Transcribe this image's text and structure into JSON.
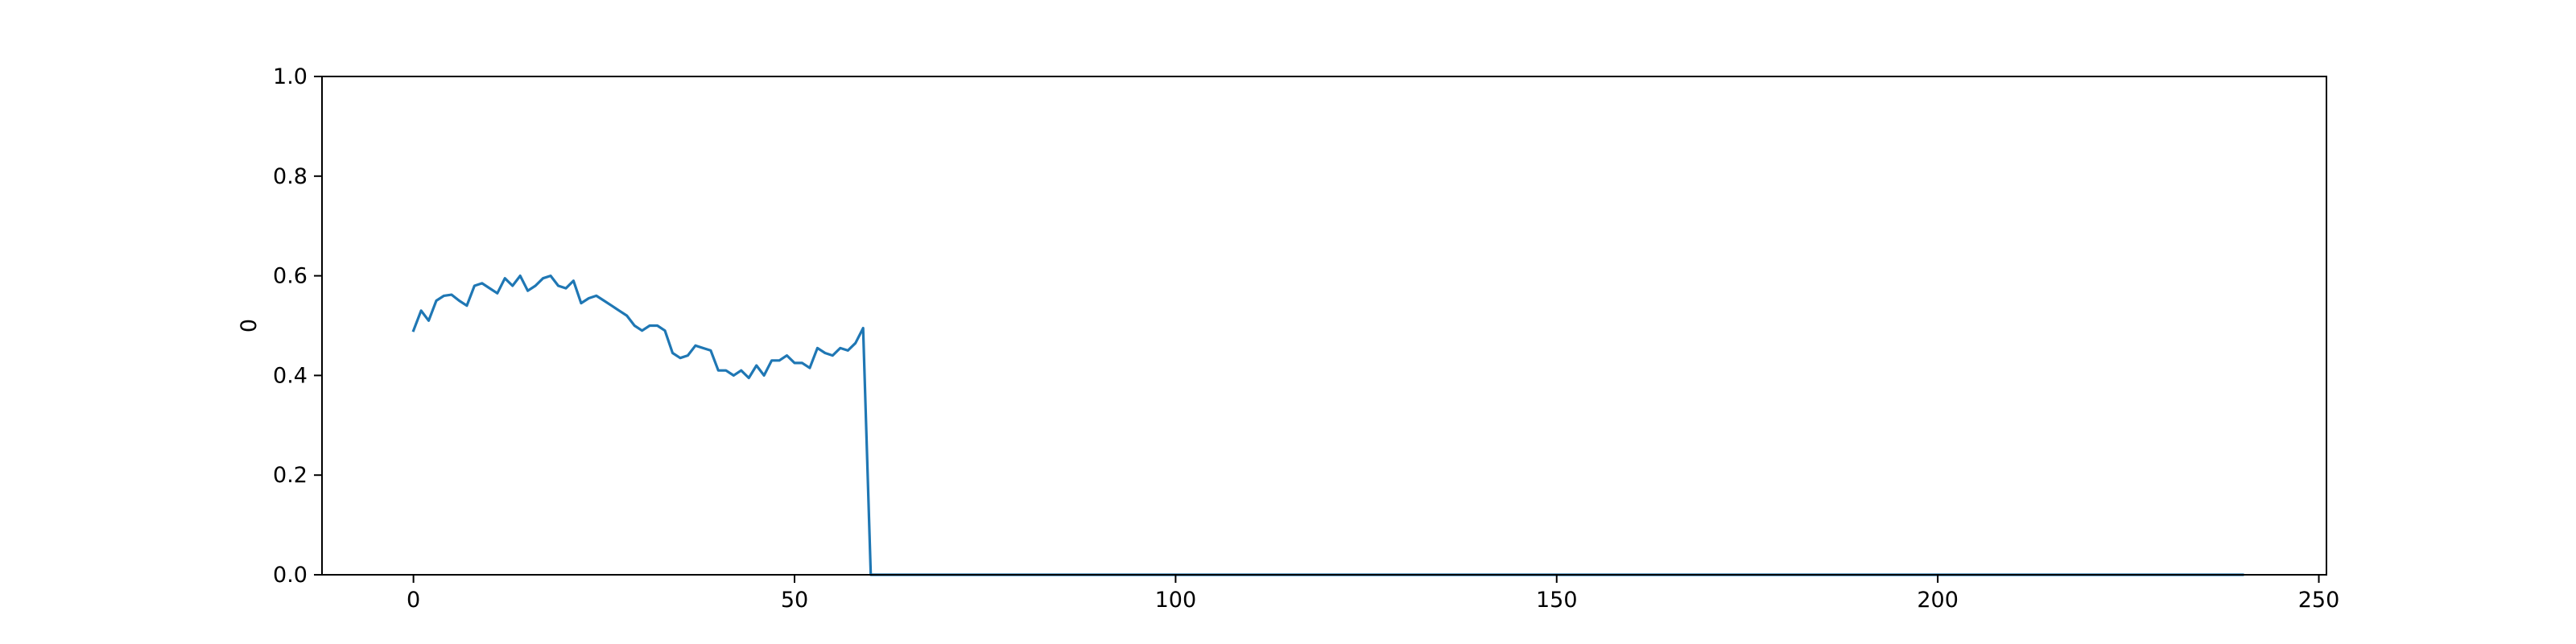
{
  "chart_data": {
    "type": "line",
    "title": "",
    "xlabel": "",
    "ylabel": "0",
    "xlim": [
      -12,
      251
    ],
    "ylim": [
      0.0,
      1.0
    ],
    "xticks": [
      0,
      50,
      100,
      150,
      200,
      250
    ],
    "xtick_labels": [
      "0",
      "50",
      "100",
      "150",
      "200",
      "250"
    ],
    "yticks": [
      0.0,
      0.2,
      0.4,
      0.6,
      0.8,
      1.0
    ],
    "ytick_labels": [
      "0.0",
      "0.2",
      "0.4",
      "0.6",
      "0.8",
      "1.0"
    ],
    "grid": false,
    "series": [
      {
        "color": "#1f77b4",
        "x": [
          0,
          1,
          2,
          3,
          4,
          5,
          6,
          7,
          8,
          9,
          10,
          11,
          12,
          13,
          14,
          15,
          16,
          17,
          18,
          19,
          20,
          21,
          22,
          23,
          24,
          25,
          26,
          27,
          28,
          29,
          30,
          31,
          32,
          33,
          34,
          35,
          36,
          37,
          38,
          39,
          40,
          41,
          42,
          43,
          44,
          45,
          46,
          47,
          48,
          49,
          50,
          51,
          52,
          53,
          54,
          55,
          56,
          57,
          58,
          59,
          60,
          240
        ],
        "y": [
          0.49,
          0.53,
          0.51,
          0.55,
          0.56,
          0.562,
          0.55,
          0.54,
          0.58,
          0.585,
          0.575,
          0.565,
          0.595,
          0.58,
          0.6,
          0.57,
          0.58,
          0.595,
          0.6,
          0.58,
          0.575,
          0.59,
          0.545,
          0.555,
          0.56,
          0.55,
          0.54,
          0.53,
          0.52,
          0.5,
          0.49,
          0.5,
          0.5,
          0.49,
          0.445,
          0.435,
          0.44,
          0.46,
          0.455,
          0.45,
          0.41,
          0.41,
          0.4,
          0.41,
          0.395,
          0.42,
          0.4,
          0.43,
          0.43,
          0.44,
          0.425,
          0.425,
          0.415,
          0.455,
          0.445,
          0.44,
          0.455,
          0.45,
          0.465,
          0.495,
          0.0,
          0.0
        ]
      }
    ]
  }
}
